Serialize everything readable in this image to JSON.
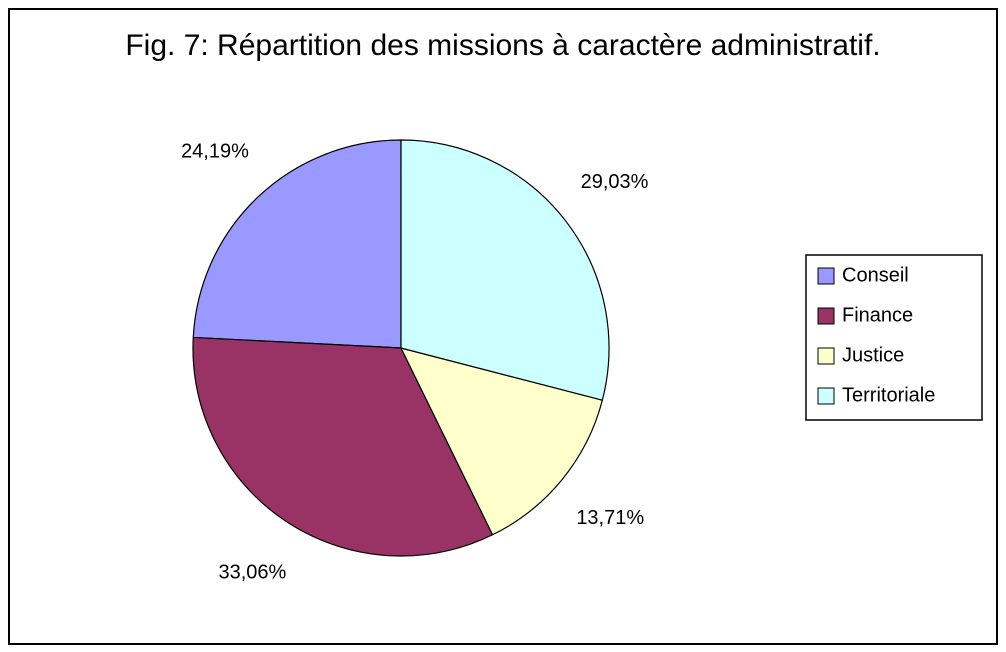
{
  "chart_data": {
    "type": "pie",
    "title": "Fig. 7: Répartition des missions à caractère administratif.",
    "categories": [
      "Conseil",
      "Finance",
      "Justice",
      "Territoriale"
    ],
    "values": [
      24.19,
      33.06,
      13.71,
      29.03
    ],
    "value_labels": [
      "24,19%",
      "33,06%",
      "13,71%",
      "29,03%"
    ],
    "colors": [
      "#9999ff",
      "#993366",
      "#ffffcc",
      "#ccffff"
    ],
    "legend": "right"
  }
}
